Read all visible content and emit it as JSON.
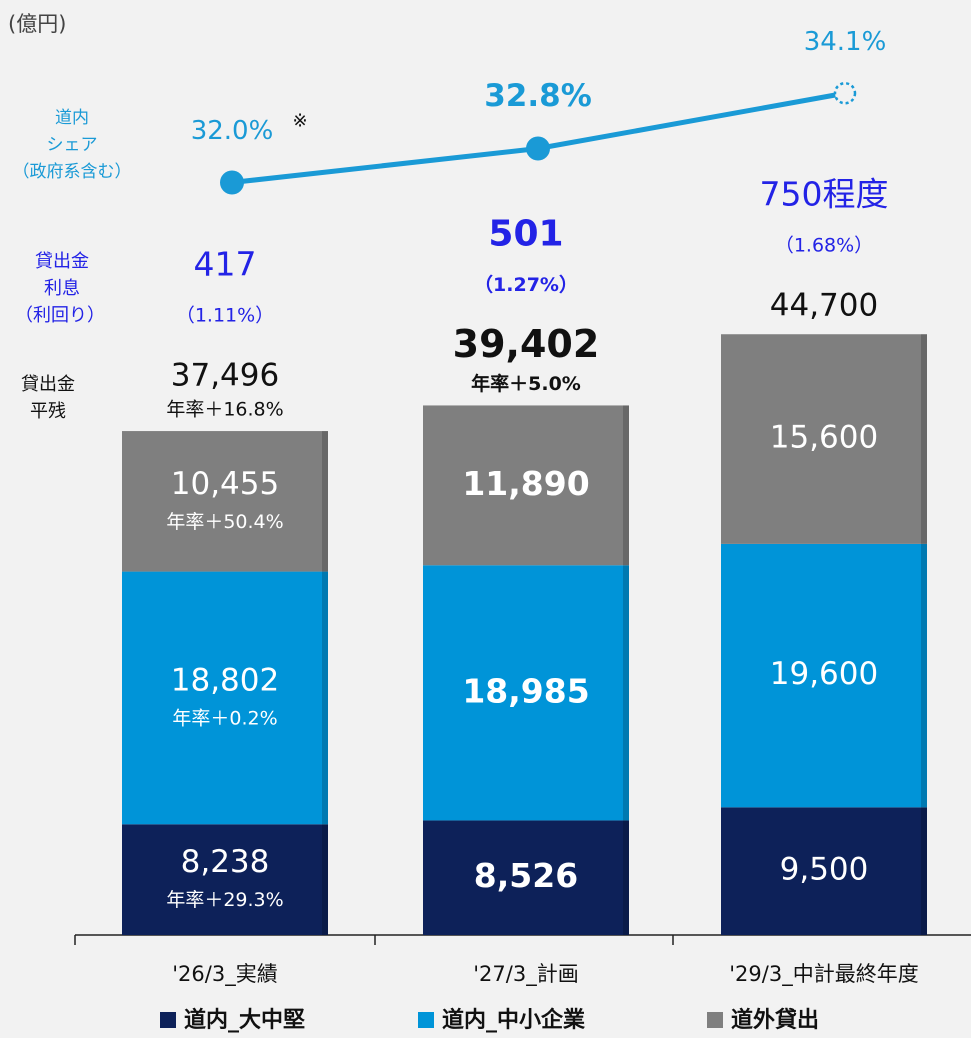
{
  "chart_data": {
    "type": "bar",
    "stacked": true,
    "unit_label": "(億円)",
    "categories": [
      "'26/3_実績",
      "'27/3_計画",
      "'29/3_中計最終年度"
    ],
    "ylim": [
      0,
      50000
    ],
    "series": [
      {
        "name": "道内_大中堅",
        "color": "#0d2159",
        "text_color": "#ffffff",
        "values": [
          8238,
          8526,
          9500
        ],
        "value_labels": [
          "8,238",
          "8,526",
          "9,500"
        ],
        "notes": [
          "年率＋29.3%",
          null,
          null
        ]
      },
      {
        "name": "道内_中小企業",
        "color": "#0094d8",
        "text_color": "#ffffff",
        "values": [
          18802,
          18985,
          19600
        ],
        "value_labels": [
          "18,802",
          "18,985",
          "19,600"
        ],
        "notes": [
          "年率＋0.2%",
          null,
          null
        ]
      },
      {
        "name": "道外貸出",
        "color": "#7f7f7f",
        "text_color": "#ffffff",
        "values": [
          10455,
          11890,
          15600
        ],
        "value_labels": [
          "10,455",
          "11,890",
          "15,600"
        ],
        "notes": [
          "年率＋50.4%",
          null,
          null
        ]
      }
    ],
    "totals": {
      "label": [
        "貸出金",
        "平残"
      ],
      "values": [
        37496,
        39402,
        44700
      ],
      "value_labels": [
        "37,496",
        "39,402",
        "44,700"
      ],
      "notes": [
        "年率＋16.8%",
        "年率＋5.0%",
        null
      ]
    },
    "interest": {
      "label": [
        "貸出金",
        "利息"
      ],
      "sub_label": "（利回り）",
      "color": "#2323e6",
      "values": [
        417,
        501,
        750
      ],
      "value_labels": [
        "417",
        "501",
        "750程度"
      ],
      "yields": [
        1.11,
        1.27,
        1.68
      ],
      "yield_labels": [
        "（1.11%）",
        "（1.27%）",
        "（1.68%）"
      ]
    },
    "share": {
      "label": [
        "道内",
        "シェア",
        "（政府系含む）"
      ],
      "color": "#1a9ad6",
      "axis": "y2",
      "values": [
        32.0,
        32.8,
        34.1
      ],
      "value_labels": [
        "32.0%",
        "32.8%",
        "34.1%"
      ],
      "annotation": "※"
    },
    "y2lim": [
      31,
      35
    ]
  }
}
